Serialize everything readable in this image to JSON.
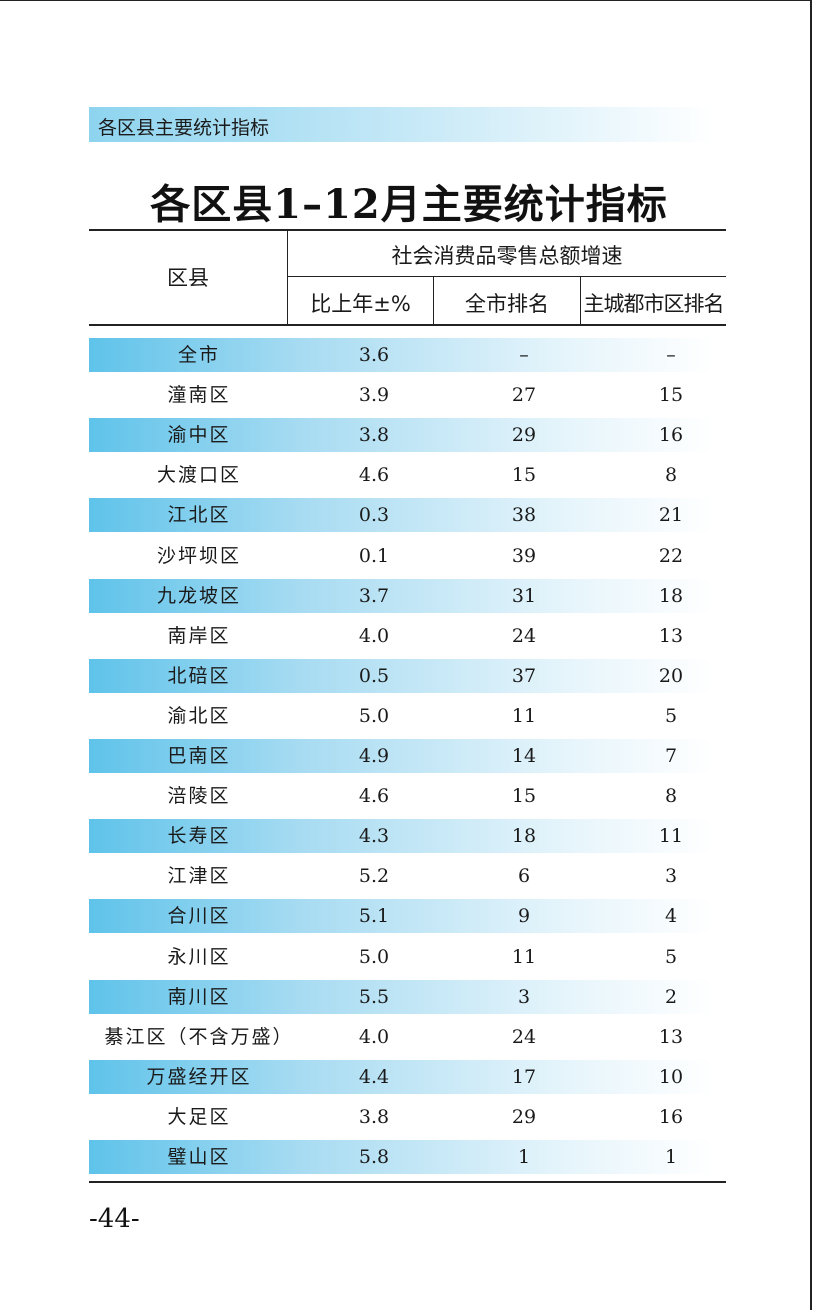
{
  "section_header": "各区县主要统计指标",
  "table_title": "各区县1–12月主要统计指标",
  "headers": {
    "district": "区县",
    "group": "社会消费品零售总额增速",
    "yoy": "比上年±%",
    "city_rank": "全市排名",
    "urban_rank": "主城都市区排名"
  },
  "rows": [
    {
      "name": "全市",
      "pct": "3.6",
      "rank": "–",
      "rank2": "–"
    },
    {
      "name": "潼南区",
      "pct": "3.9",
      "rank": "27",
      "rank2": "15"
    },
    {
      "name": "渝中区",
      "pct": "3.8",
      "rank": "29",
      "rank2": "16"
    },
    {
      "name": "大渡口区",
      "pct": "4.6",
      "rank": "15",
      "rank2": "8"
    },
    {
      "name": "江北区",
      "pct": "0.3",
      "rank": "38",
      "rank2": "21"
    },
    {
      "name": "沙坪坝区",
      "pct": "0.1",
      "rank": "39",
      "rank2": "22"
    },
    {
      "name": "九龙坡区",
      "pct": "3.7",
      "rank": "31",
      "rank2": "18"
    },
    {
      "name": "南岸区",
      "pct": "4.0",
      "rank": "24",
      "rank2": "13"
    },
    {
      "name": "北碚区",
      "pct": "0.5",
      "rank": "37",
      "rank2": "20"
    },
    {
      "name": "渝北区",
      "pct": "5.0",
      "rank": "11",
      "rank2": "5"
    },
    {
      "name": "巴南区",
      "pct": "4.9",
      "rank": "14",
      "rank2": "7"
    },
    {
      "name": "涪陵区",
      "pct": "4.6",
      "rank": "15",
      "rank2": "8"
    },
    {
      "name": "长寿区",
      "pct": "4.3",
      "rank": "18",
      "rank2": "11"
    },
    {
      "name": "江津区",
      "pct": "5.2",
      "rank": "6",
      "rank2": "3"
    },
    {
      "name": "合川区",
      "pct": "5.1",
      "rank": "9",
      "rank2": "4"
    },
    {
      "name": "永川区",
      "pct": "5.0",
      "rank": "11",
      "rank2": "5"
    },
    {
      "name": "南川区",
      "pct": "5.5",
      "rank": "3",
      "rank2": "2"
    },
    {
      "name": "綦江区（不含万盛）",
      "pct": "4.0",
      "rank": "24",
      "rank2": "13"
    },
    {
      "name": "万盛经开区",
      "pct": "4.4",
      "rank": "17",
      "rank2": "10"
    },
    {
      "name": "大足区",
      "pct": "3.8",
      "rank": "29",
      "rank2": "16"
    },
    {
      "name": "璧山区",
      "pct": "5.8",
      "rank": "1",
      "rank2": "1"
    }
  ],
  "page_number": "-44-"
}
